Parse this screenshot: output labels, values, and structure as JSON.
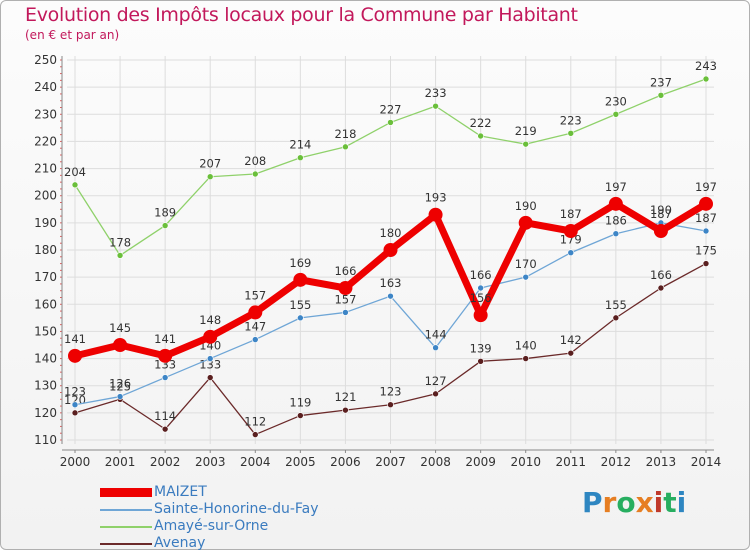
{
  "title": "Evolution des Impôts locaux pour la Commune par Habitant",
  "subtitle": "(en € et par an)",
  "logo": [
    "P",
    "r",
    "o",
    "x",
    "i",
    "t",
    "i"
  ],
  "logo_colors": [
    "#2e86c1",
    "#e67e22",
    "#27ae60",
    "#e67e22",
    "#c0392b",
    "#27ae60",
    "#2e86c1"
  ],
  "chart_data": {
    "type": "line",
    "x": [
      "2000",
      "2001",
      "2002",
      "2003",
      "2004",
      "2005",
      "2006",
      "2007",
      "2008",
      "2009",
      "2010",
      "2011",
      "2012",
      "2013",
      "2014"
    ],
    "ylim": [
      110,
      250
    ],
    "yticks": [
      110,
      120,
      130,
      140,
      150,
      160,
      170,
      180,
      190,
      200,
      210,
      220,
      230,
      240,
      250
    ],
    "grid": true,
    "series": [
      {
        "name": "Amayé-sur-Orne",
        "color": "#8fd16a",
        "point": "#6abf3a",
        "width": 1.3,
        "radius": 3,
        "values": [
          204,
          178,
          189,
          207,
          208,
          214,
          218,
          227,
          233,
          222,
          219,
          223,
          230,
          237,
          243
        ]
      },
      {
        "name": "Avenay",
        "color": "#6b2a2a",
        "point": "#5a1f1f",
        "width": 1.3,
        "radius": 3,
        "values": [
          120,
          125,
          114,
          133,
          112,
          119,
          121,
          123,
          127,
          139,
          140,
          142,
          155,
          166,
          175
        ]
      },
      {
        "name": "Sainte-Honorine-du-Fay",
        "color": "#6fa6d6",
        "point": "#3d85c6",
        "width": 1.3,
        "radius": 3,
        "values": [
          123,
          126,
          133,
          140,
          147,
          155,
          157,
          163,
          144,
          166,
          170,
          179,
          186,
          190,
          187
        ]
      },
      {
        "name": "MAIZET",
        "color": "#ee0000",
        "point": "#ee0000",
        "width": 7,
        "radius": 7,
        "values": [
          141,
          145,
          141,
          148,
          157,
          169,
          166,
          180,
          193,
          156,
          190,
          187,
          197,
          187,
          197
        ]
      }
    ],
    "legend": [
      "MAIZET",
      "Sainte-Honorine-du-Fay",
      "Amayé-sur-Orne",
      "Avenay"
    ],
    "legend_colors": [
      "#ee0000",
      "#6fa6d6",
      "#8fd16a",
      "#6b2a2a"
    ]
  }
}
